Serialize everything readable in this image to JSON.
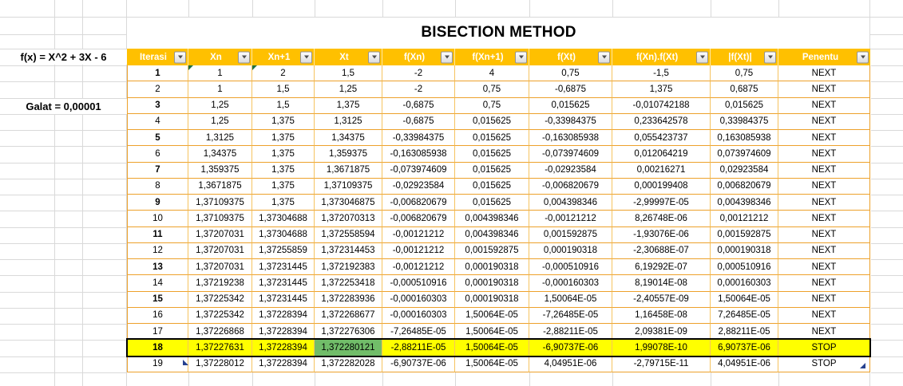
{
  "colors": {
    "header_bg": "#FFC000",
    "header_text": "#FFFFFF",
    "highlight_row_bg": "#FFFF00",
    "highlight_row_border": "#000000",
    "result_cell_bg": "#71BD69",
    "table_grid_orange": "#EDA12B",
    "sheet_gridline_gray": "#D9D9D9",
    "error_indicator_green": "#1E7145",
    "marker_navy": "#26418F"
  },
  "icons": {
    "header_filter": "chevron-down-icon",
    "row1_cell_corner": "error-indicator-triangle",
    "bottom_right": "table-resize-handle"
  },
  "sheet": {
    "title": "BISECTION METHOD",
    "function_label": "f(x) = X^2 + 3X - 6",
    "error_label": "Galat = 0,00001"
  },
  "table": {
    "columns": [
      "Iterasi",
      "Xn",
      "Xn+1",
      "Xt",
      "f(Xn)",
      "f(Xn+1)",
      "f(Xt)",
      "f(Xn).f(Xt)",
      "|f(Xt)|",
      "Penentu"
    ],
    "rows": [
      {
        "cells": [
          "1",
          "1",
          "2",
          "1,5",
          "-2",
          "4",
          "0,75",
          "-1,5",
          "0,75",
          "NEXT"
        ],
        "iterasi_bold": true,
        "error_marks": [
          1,
          2
        ]
      },
      {
        "cells": [
          "2",
          "1",
          "1,5",
          "1,25",
          "-2",
          "0,75",
          "-0,6875",
          "1,375",
          "0,6875",
          "NEXT"
        ],
        "iterasi_bold": false
      },
      {
        "cells": [
          "3",
          "1,25",
          "1,5",
          "1,375",
          "-0,6875",
          "0,75",
          "0,015625",
          "-0,010742188",
          "0,015625",
          "NEXT"
        ],
        "iterasi_bold": true
      },
      {
        "cells": [
          "4",
          "1,25",
          "1,375",
          "1,3125",
          "-0,6875",
          "0,015625",
          "-0,33984375",
          "0,233642578",
          "0,33984375",
          "NEXT"
        ],
        "iterasi_bold": false
      },
      {
        "cells": [
          "5",
          "1,3125",
          "1,375",
          "1,34375",
          "-0,33984375",
          "0,015625",
          "-0,163085938",
          "0,055423737",
          "0,163085938",
          "NEXT"
        ],
        "iterasi_bold": true
      },
      {
        "cells": [
          "6",
          "1,34375",
          "1,375",
          "1,359375",
          "-0,163085938",
          "0,015625",
          "-0,073974609",
          "0,012064219",
          "0,073974609",
          "NEXT"
        ],
        "iterasi_bold": false
      },
      {
        "cells": [
          "7",
          "1,359375",
          "1,375",
          "1,3671875",
          "-0,073974609",
          "0,015625",
          "-0,02923584",
          "0,00216271",
          "0,02923584",
          "NEXT"
        ],
        "iterasi_bold": true
      },
      {
        "cells": [
          "8",
          "1,3671875",
          "1,375",
          "1,37109375",
          "-0,02923584",
          "0,015625",
          "-0,006820679",
          "0,000199408",
          "0,006820679",
          "NEXT"
        ],
        "iterasi_bold": false
      },
      {
        "cells": [
          "9",
          "1,37109375",
          "1,375",
          "1,373046875",
          "-0,006820679",
          "0,015625",
          "0,004398346",
          "-2,99997E-05",
          "0,004398346",
          "NEXT"
        ],
        "iterasi_bold": true
      },
      {
        "cells": [
          "10",
          "1,37109375",
          "1,37304688",
          "1,372070313",
          "-0,006820679",
          "0,004398346",
          "-0,00121212",
          "8,26748E-06",
          "0,00121212",
          "NEXT"
        ],
        "iterasi_bold": false
      },
      {
        "cells": [
          "11",
          "1,37207031",
          "1,37304688",
          "1,372558594",
          "-0,00121212",
          "0,004398346",
          "0,001592875",
          "-1,93076E-06",
          "0,001592875",
          "NEXT"
        ],
        "iterasi_bold": true
      },
      {
        "cells": [
          "12",
          "1,37207031",
          "1,37255859",
          "1,372314453",
          "-0,00121212",
          "0,001592875",
          "0,000190318",
          "-2,30688E-07",
          "0,000190318",
          "NEXT"
        ],
        "iterasi_bold": false
      },
      {
        "cells": [
          "13",
          "1,37207031",
          "1,37231445",
          "1,372192383",
          "-0,00121212",
          "0,000190318",
          "-0,000510916",
          "6,19292E-07",
          "0,000510916",
          "NEXT"
        ],
        "iterasi_bold": true
      },
      {
        "cells": [
          "14",
          "1,37219238",
          "1,37231445",
          "1,372253418",
          "-0,000510916",
          "0,000190318",
          "-0,000160303",
          "8,19014E-08",
          "0,000160303",
          "NEXT"
        ],
        "iterasi_bold": false
      },
      {
        "cells": [
          "15",
          "1,37225342",
          "1,37231445",
          "1,372283936",
          "-0,000160303",
          "0,000190318",
          "1,50064E-05",
          "-2,40557E-09",
          "1,50064E-05",
          "NEXT"
        ],
        "iterasi_bold": true
      },
      {
        "cells": [
          "16",
          "1,37225342",
          "1,37228394",
          "1,372268677",
          "-0,000160303",
          "1,50064E-05",
          "-7,26485E-05",
          "1,16458E-08",
          "7,26485E-05",
          "NEXT"
        ],
        "iterasi_bold": false
      },
      {
        "cells": [
          "17",
          "1,37226868",
          "1,37228394",
          "1,372276306",
          "-7,26485E-05",
          "1,50064E-05",
          "-2,88211E-05",
          "2,09381E-09",
          "2,88211E-05",
          "NEXT"
        ],
        "iterasi_bold": false
      },
      {
        "cells": [
          "18",
          "1,37227631",
          "1,37228394",
          "1,372280121",
          "-2,88211E-05",
          "1,50064E-05",
          "-6,90737E-06",
          "1,99078E-10",
          "6,90737E-06",
          "STOP"
        ],
        "iterasi_bold": true,
        "highlight": true,
        "result_cell_index": 3
      },
      {
        "cells": [
          "19",
          "1,37228012",
          "1,37228394",
          "1,372282028",
          "-6,90737E-06",
          "1,50064E-05",
          "4,04951E-06",
          "-2,79715E-11",
          "4,04951E-06",
          "STOP"
        ],
        "iterasi_bold": false
      }
    ]
  }
}
